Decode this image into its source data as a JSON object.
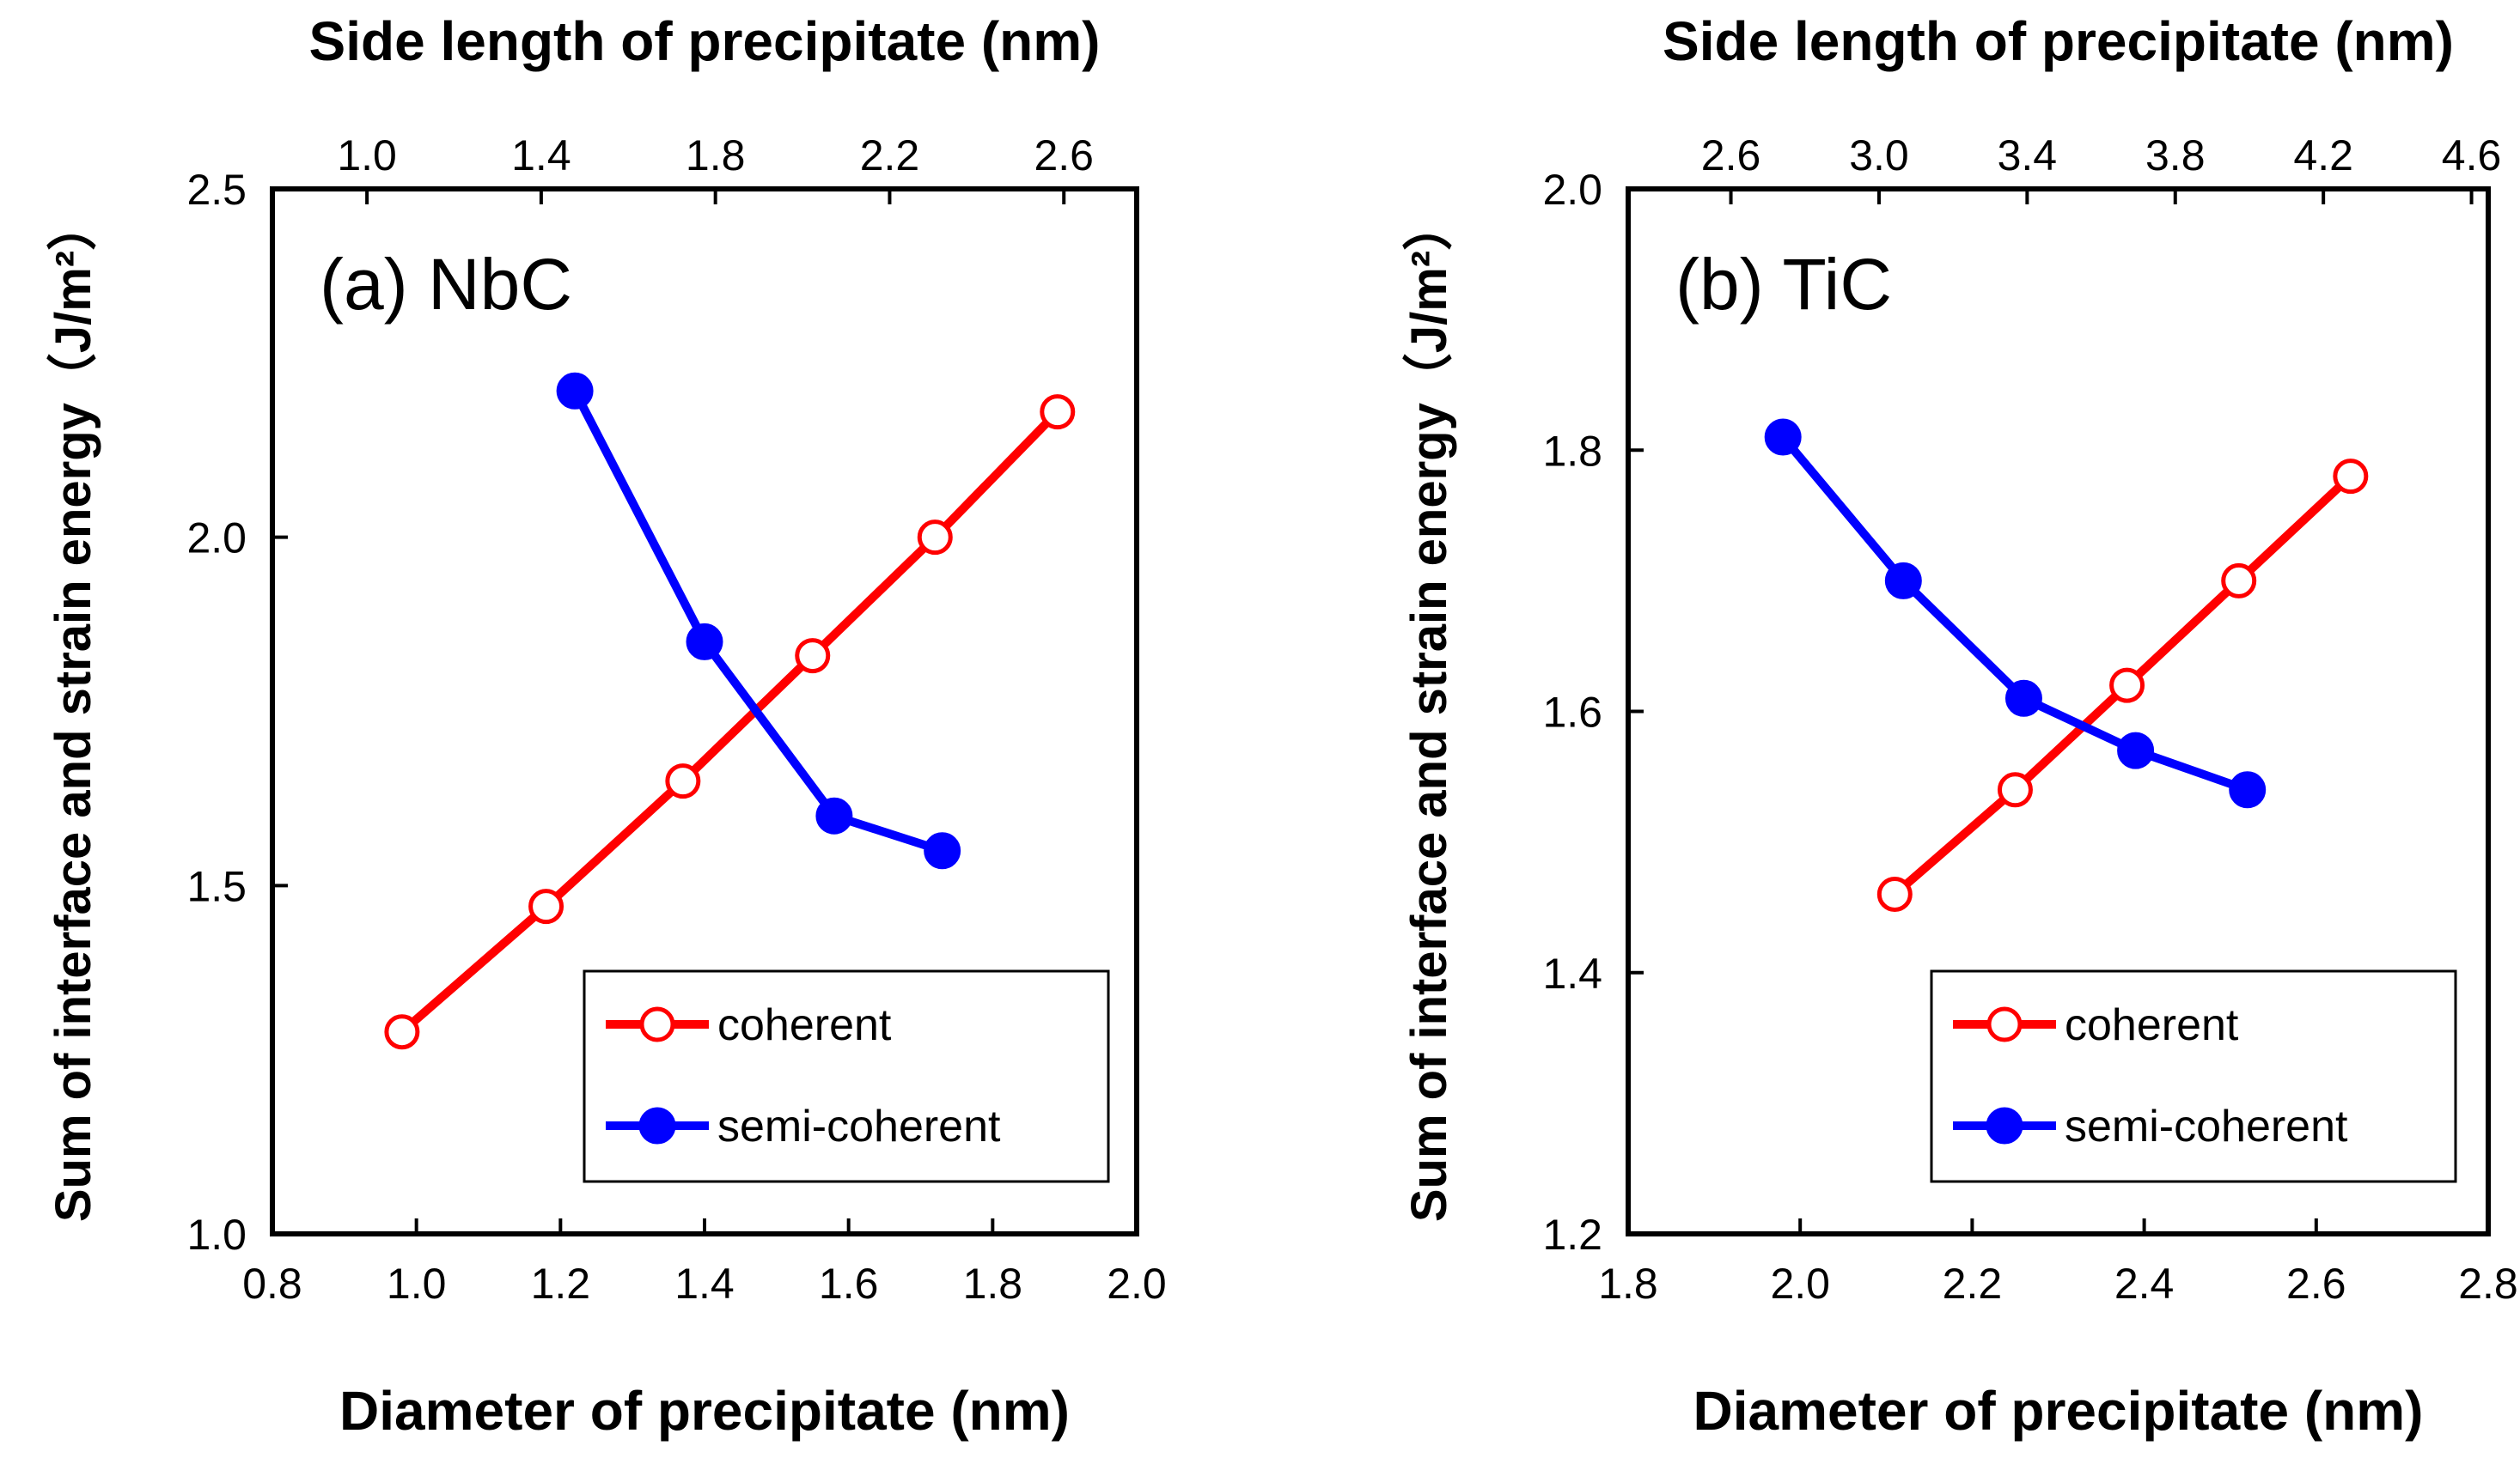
{
  "chart_data": [
    {
      "type": "line",
      "panel_label": "(a)  NbC",
      "xlabel": "Diameter of precipitate (nm)",
      "x2label": "Side length of  precipitate (nm)",
      "ylabel": "Sum of interface and strain energy（J/m²）",
      "xlim": [
        0.8,
        2.0
      ],
      "ylim": [
        1.0,
        2.5
      ],
      "x2lim": [
        0.7828,
        2.7672
      ],
      "xticks": [
        "0.8",
        "1.0",
        "1.2",
        "1.4",
        "1.6",
        "1.8",
        "2.0"
      ],
      "yticks": [
        "1.0",
        "1.5",
        "2.0",
        "2.5"
      ],
      "x2ticks": [
        "1.0",
        "1.4",
        "1.8",
        "2.2",
        "2.6"
      ],
      "series": [
        {
          "name": "coherent",
          "color": "#ff0000",
          "marker": "open-circle",
          "x": [
            0.98,
            1.18,
            1.37,
            1.55,
            1.72,
            1.89
          ],
          "y": [
            1.29,
            1.47,
            1.65,
            1.83,
            2.0,
            2.18
          ]
        },
        {
          "name": "semi-coherent",
          "color": "#0000ff",
          "marker": "filled-circle",
          "x": [
            1.22,
            1.4,
            1.58,
            1.73
          ],
          "y": [
            2.21,
            1.85,
            1.6,
            1.55
          ]
        }
      ],
      "legend_position": "bottom-right"
    },
    {
      "type": "line",
      "panel_label": "(b)  TiC",
      "xlabel": "Diameter of precipitate (nm)",
      "x2label": "Side length of  precipitate (nm)",
      "ylabel": "Sum of interface and strain energy（J/m²）",
      "xlim": [
        1.8,
        2.8
      ],
      "ylim": [
        1.2,
        2.0
      ],
      "x2lim": [
        2.3226,
        4.6451
      ],
      "xticks": [
        "1.8",
        "2.0",
        "2.2",
        "2.4",
        "2.6",
        "2.8"
      ],
      "yticks": [
        "1.2",
        "1.4",
        "1.6",
        "1.8",
        "2.0"
      ],
      "x2ticks": [
        "2.6",
        "3.0",
        "3.4",
        "3.8",
        "4.2",
        "4.6"
      ],
      "series": [
        {
          "name": "coherent",
          "color": "#ff0000",
          "marker": "open-circle",
          "x": [
            2.11,
            2.25,
            2.38,
            2.51,
            2.64
          ],
          "y": [
            1.46,
            1.54,
            1.62,
            1.7,
            1.78
          ]
        },
        {
          "name": "semi-coherent",
          "color": "#0000ff",
          "marker": "filled-circle",
          "x": [
            1.98,
            2.12,
            2.26,
            2.39,
            2.52
          ],
          "y": [
            1.81,
            1.7,
            1.61,
            1.57,
            1.54
          ]
        }
      ],
      "legend_position": "bottom-right"
    }
  ]
}
